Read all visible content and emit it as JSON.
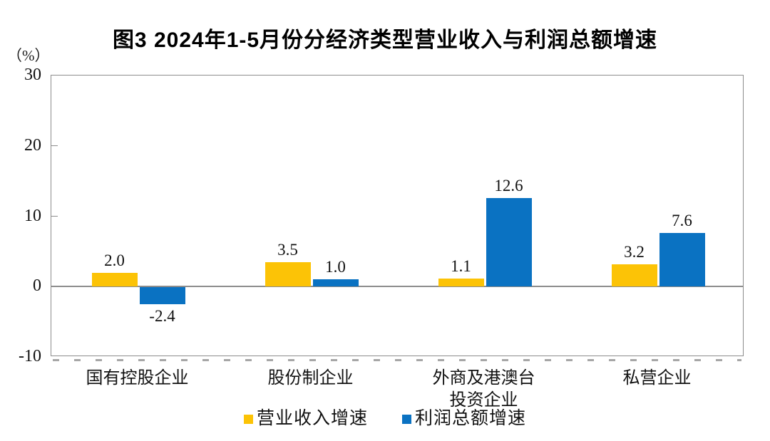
{
  "chart": {
    "title": "图3  2024年1-5月份分经济类型营业收入与利润总额增速",
    "unit_label": "（%）"
  },
  "chart_data": {
    "type": "bar",
    "title": "图3  2024年1-5月份分经济类型营业收入与利润总额增速",
    "unit": "%",
    "categories": [
      "国有控股企业",
      "股份制企业",
      "外商及港澳台\n投资企业",
      "私营企业"
    ],
    "series": [
      {
        "name": "营业收入增速",
        "color": "#FCC306",
        "values": [
          2.0,
          3.5,
          1.1,
          3.2
        ]
      },
      {
        "name": "利润总额增速",
        "color": "#0A72C2",
        "values": [
          -2.4,
          1.0,
          12.6,
          7.6
        ]
      }
    ],
    "value_labels": [
      [
        "2.0",
        "3.5",
        "1.1",
        "3.2"
      ],
      [
        "-2.4",
        "1.0",
        "12.6",
        "7.6"
      ]
    ],
    "ylabel": "（%）",
    "ylim": [
      -10,
      30
    ],
    "yticks": [
      30,
      20,
      10,
      0,
      -10
    ],
    "grid": false,
    "legend_position": "bottom"
  },
  "colors": {
    "axis": "#8c8c8c",
    "text": "#111111",
    "revenue_yellow": "#FCC306",
    "profit_blue": "#0A72C2"
  }
}
